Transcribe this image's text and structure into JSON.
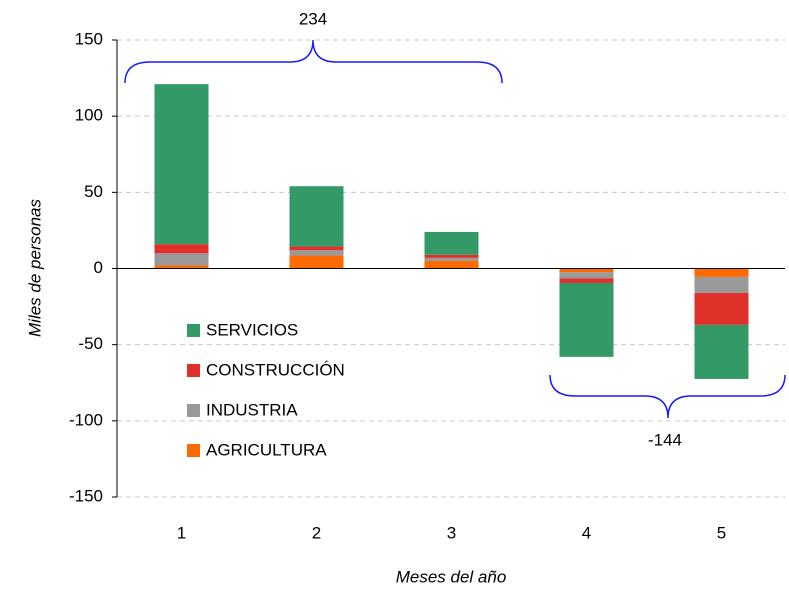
{
  "chart_data": {
    "type": "stacked_bar",
    "categories": [
      "1",
      "2",
      "3",
      "4",
      "5"
    ],
    "series": [
      {
        "name": "AGRICULTURA",
        "color": "#ff6a00",
        "values": [
          2,
          8.5,
          5,
          -2.5,
          -5.5
        ]
      },
      {
        "name": "INDUSTRIA",
        "color": "#999999",
        "values": [
          8,
          3.5,
          2,
          -4,
          -10.5
        ]
      },
      {
        "name": "CONSTRUCCIÓN",
        "color": "#e0302a",
        "values": [
          6,
          2.5,
          2,
          -3,
          -21
        ]
      },
      {
        "name": "SERVICIOS",
        "color": "#339966",
        "values": [
          105,
          39.5,
          15,
          -48.5,
          -35.5
        ]
      }
    ],
    "ylim": [
      -150,
      150
    ],
    "yticks": [
      -150,
      -100,
      -50,
      0,
      50,
      100,
      150
    ],
    "negative_tick_color": "#e00000",
    "ylabel": "Miles de personas",
    "xlabel": "Meses del año",
    "annotations": [
      "234",
      "-144"
    ],
    "annotation_color": "#1a1aff",
    "grid": true,
    "legend": "left"
  }
}
